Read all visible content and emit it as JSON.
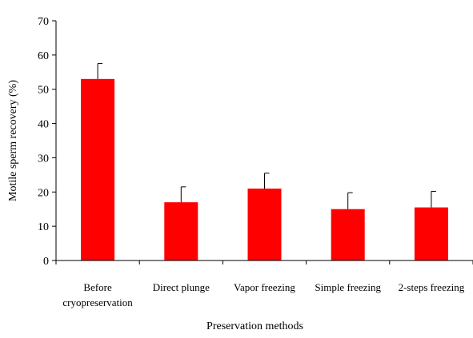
{
  "chart_data": {
    "type": "bar",
    "title": "",
    "xlabel": "Preservation methods",
    "ylabel": "Motile sperm recovery (%)",
    "ylim": [
      0,
      70
    ],
    "yticks": [
      0,
      10,
      20,
      30,
      40,
      50,
      60,
      70
    ],
    "grid": false,
    "legend": "none",
    "bar_color": "#ff0000",
    "categories": [
      [
        "Before",
        "cryopreservation"
      ],
      [
        "Direct plunge"
      ],
      [
        "Vapor freezing"
      ],
      [
        "Simple freezing"
      ],
      [
        "2-steps freezing"
      ]
    ],
    "values": [
      53,
      17,
      21,
      15,
      15.5
    ],
    "error": [
      4.5,
      4.5,
      4.5,
      4.8,
      4.7
    ]
  }
}
